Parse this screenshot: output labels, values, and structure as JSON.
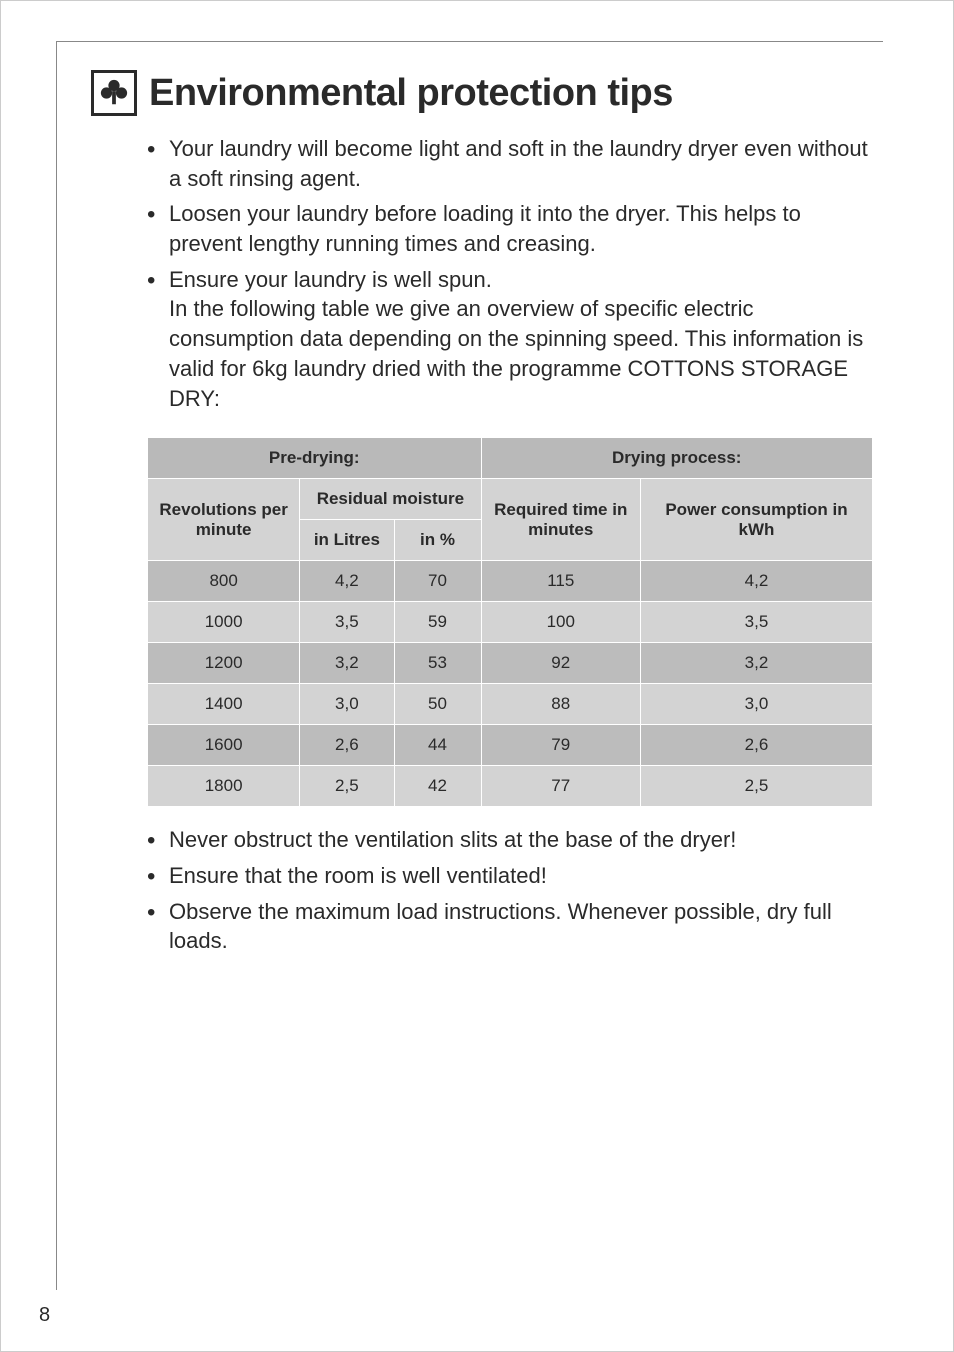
{
  "title": "Environmental protection tips",
  "bullets_top": [
    "Your laundry will become light and soft in the laundry dryer even without a soft rinsing agent.",
    "Loosen your laundry before loading it into the dryer. This helps to prevent lengthy running times and creasing.",
    "Ensure your laundry is well spun.\nIn the following table we give an overview of specific electric consumption data depending on the spinning speed. This information is valid for 6kg laundry dried with the programme COTTONS STORAGE DRY:"
  ],
  "bullets_bottom": [
    "Never obstruct the ventilation slits at the base of the dryer!",
    "Ensure that the room is well ventilated!",
    "Observe the maximum load instructions. Whenever possible, dry full loads."
  ],
  "table": {
    "header_bg": "#b9b9b9",
    "row_bg_dark": "#bcbcbc",
    "row_bg_light": "#d3d3d3",
    "border_color": "#ffffff",
    "col_widths_pct": [
      21,
      13,
      12,
      22,
      32
    ],
    "headers": {
      "predrying": "Pre-drying:",
      "drying": "Drying process:",
      "rpm": "Revolutions per minute",
      "residual": "Residual moisture",
      "litres": "in Litres",
      "percent": "in %",
      "time": "Required time in minutes",
      "power": "Power consumption in kWh"
    },
    "rows": [
      {
        "rpm": "800",
        "litres": "4,2",
        "pct": "70",
        "time": "115",
        "kwh": "4,2"
      },
      {
        "rpm": "1000",
        "litres": "3,5",
        "pct": "59",
        "time": "100",
        "kwh": "3,5"
      },
      {
        "rpm": "1200",
        "litres": "3,2",
        "pct": "53",
        "time": "92",
        "kwh": "3,2"
      },
      {
        "rpm": "1400",
        "litres": "3,0",
        "pct": "50",
        "time": "88",
        "kwh": "3,0"
      },
      {
        "rpm": "1600",
        "litres": "2,6",
        "pct": "44",
        "time": "79",
        "kwh": "2,6"
      },
      {
        "rpm": "1800",
        "litres": "2,5",
        "pct": "42",
        "time": "77",
        "kwh": "2,5"
      }
    ]
  },
  "page_number": "8"
}
